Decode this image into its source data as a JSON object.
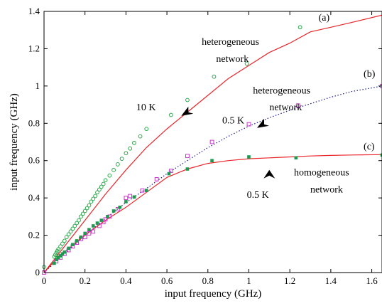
{
  "chart_data": {
    "type": "scatter",
    "xlabel": "input frequency (GHz)",
    "ylabel": "input frequency (GHz)",
    "xlim": [
      0,
      1.65
    ],
    "ylim": [
      0,
      1.4
    ],
    "xticks": [
      "0",
      "0.2",
      "0.4",
      "0.6",
      "0.8",
      "1",
      "1.2",
      "1.4",
      "1.6"
    ],
    "xtick_values": [
      0,
      0.2,
      0.4,
      0.6,
      0.8,
      1.0,
      1.2,
      1.4,
      1.6
    ],
    "yticks": [
      "0",
      "0.2",
      "0.4",
      "0.6",
      "0.8",
      "1",
      "1.2",
      "1.4"
    ],
    "ytick_values": [
      0,
      0.2,
      0.4,
      0.6,
      0.8,
      1.0,
      1.2,
      1.4
    ],
    "grid": false,
    "legend": "none",
    "colors": {
      "green_circle": "#2aa84a",
      "magenta_square": "#cc33cc",
      "green_square": "#1e9a50",
      "red_line": "#e8262b",
      "navy_dotted": "#1b1b8a"
    },
    "series": [
      {
        "marker": "open-circle",
        "color": "#2aa84a",
        "points": [
          [
            0.0,
            0.03
          ],
          [
            0.05,
            0.085
          ],
          [
            0.055,
            0.095
          ],
          [
            0.06,
            0.105
          ],
          [
            0.065,
            0.115
          ],
          [
            0.07,
            0.125
          ],
          [
            0.08,
            0.14
          ],
          [
            0.09,
            0.155
          ],
          [
            0.1,
            0.17
          ],
          [
            0.11,
            0.19
          ],
          [
            0.12,
            0.205
          ],
          [
            0.13,
            0.22
          ],
          [
            0.14,
            0.235
          ],
          [
            0.15,
            0.25
          ],
          [
            0.16,
            0.265
          ],
          [
            0.17,
            0.28
          ],
          [
            0.18,
            0.3
          ],
          [
            0.19,
            0.315
          ],
          [
            0.2,
            0.33
          ],
          [
            0.21,
            0.345
          ],
          [
            0.22,
            0.36
          ],
          [
            0.23,
            0.38
          ],
          [
            0.24,
            0.395
          ],
          [
            0.25,
            0.41
          ],
          [
            0.26,
            0.43
          ],
          [
            0.27,
            0.445
          ],
          [
            0.28,
            0.46
          ],
          [
            0.29,
            0.475
          ],
          [
            0.3,
            0.495
          ],
          [
            0.32,
            0.52
          ],
          [
            0.34,
            0.55
          ],
          [
            0.36,
            0.58
          ],
          [
            0.38,
            0.61
          ],
          [
            0.4,
            0.64
          ],
          [
            0.42,
            0.665
          ],
          [
            0.44,
            0.695
          ],
          [
            0.47,
            0.73
          ],
          [
            0.5,
            0.77
          ],
          [
            0.62,
            0.845
          ],
          [
            0.7,
            0.925
          ],
          [
            0.83,
            1.05
          ],
          [
            0.99,
            1.12
          ],
          [
            1.25,
            1.315
          ]
        ]
      },
      {
        "marker": "open-square",
        "color": "#cc33cc",
        "points": [
          [
            0.0,
            0.0
          ],
          [
            0.06,
            0.06
          ],
          [
            0.08,
            0.08
          ],
          [
            0.1,
            0.1
          ],
          [
            0.12,
            0.12
          ],
          [
            0.14,
            0.14
          ],
          [
            0.16,
            0.16
          ],
          [
            0.18,
            0.18
          ],
          [
            0.2,
            0.19
          ],
          [
            0.22,
            0.21
          ],
          [
            0.24,
            0.22
          ],
          [
            0.27,
            0.25
          ],
          [
            0.29,
            0.27
          ],
          [
            0.3,
            0.285
          ],
          [
            0.32,
            0.3
          ],
          [
            0.36,
            0.34
          ],
          [
            0.4,
            0.4
          ],
          [
            0.42,
            0.41
          ],
          [
            0.48,
            0.44
          ],
          [
            0.55,
            0.5
          ],
          [
            0.62,
            0.545
          ],
          [
            0.7,
            0.625
          ],
          [
            0.82,
            0.7
          ],
          [
            1.0,
            0.795
          ],
          [
            1.24,
            0.895
          ],
          [
            1.65,
            1.0
          ]
        ]
      },
      {
        "marker": "filled-square",
        "color": "#1e9a50",
        "points": [
          [
            0.05,
            0.05
          ],
          [
            0.06,
            0.07
          ],
          [
            0.07,
            0.08
          ],
          [
            0.08,
            0.09
          ],
          [
            0.09,
            0.1
          ],
          [
            0.1,
            0.11
          ],
          [
            0.12,
            0.13
          ],
          [
            0.14,
            0.15
          ],
          [
            0.16,
            0.17
          ],
          [
            0.18,
            0.19
          ],
          [
            0.2,
            0.21
          ],
          [
            0.22,
            0.23
          ],
          [
            0.24,
            0.25
          ],
          [
            0.26,
            0.265
          ],
          [
            0.28,
            0.28
          ],
          [
            0.31,
            0.3
          ],
          [
            0.34,
            0.33
          ],
          [
            0.37,
            0.35
          ],
          [
            0.4,
            0.38
          ],
          [
            0.44,
            0.405
          ],
          [
            0.5,
            0.44
          ],
          [
            0.61,
            0.53
          ],
          [
            0.7,
            0.555
          ],
          [
            0.82,
            0.6
          ],
          [
            1.0,
            0.62
          ],
          [
            1.23,
            0.615
          ],
          [
            1.65,
            0.63
          ]
        ]
      }
    ],
    "curves": [
      {
        "style": "solid",
        "color": "#e8262b",
        "points": [
          [
            0.0,
            0.0
          ],
          [
            0.05,
            0.07
          ],
          [
            0.1,
            0.14
          ],
          [
            0.2,
            0.28
          ],
          [
            0.3,
            0.42
          ],
          [
            0.4,
            0.55
          ],
          [
            0.5,
            0.67
          ],
          [
            0.6,
            0.77
          ],
          [
            0.7,
            0.86
          ],
          [
            0.8,
            0.95
          ],
          [
            0.9,
            1.04
          ],
          [
            1.0,
            1.11
          ],
          [
            1.1,
            1.18
          ],
          [
            1.2,
            1.23
          ],
          [
            1.3,
            1.29
          ],
          [
            1.4,
            1.315
          ],
          [
            1.5,
            1.34
          ],
          [
            1.65,
            1.38
          ]
        ]
      },
      {
        "style": "dotted",
        "color": "#1b1b8a",
        "points": [
          [
            0.0,
            0.0
          ],
          [
            0.1,
            0.1
          ],
          [
            0.2,
            0.2
          ],
          [
            0.3,
            0.29
          ],
          [
            0.4,
            0.375
          ],
          [
            0.5,
            0.45
          ],
          [
            0.6,
            0.53
          ],
          [
            0.7,
            0.6
          ],
          [
            0.8,
            0.67
          ],
          [
            0.9,
            0.73
          ],
          [
            1.0,
            0.785
          ],
          [
            1.1,
            0.83
          ],
          [
            1.2,
            0.87
          ],
          [
            1.3,
            0.905
          ],
          [
            1.4,
            0.94
          ],
          [
            1.5,
            0.97
          ],
          [
            1.65,
            1.0
          ]
        ]
      },
      {
        "style": "solid",
        "color": "#e8262b",
        "points": [
          [
            0.0,
            0.0
          ],
          [
            0.05,
            0.06
          ],
          [
            0.1,
            0.11
          ],
          [
            0.2,
            0.2
          ],
          [
            0.3,
            0.28
          ],
          [
            0.4,
            0.35
          ],
          [
            0.5,
            0.43
          ],
          [
            0.6,
            0.51
          ],
          [
            0.7,
            0.555
          ],
          [
            0.8,
            0.585
          ],
          [
            0.9,
            0.6
          ],
          [
            1.0,
            0.61
          ],
          [
            1.1,
            0.615
          ],
          [
            1.2,
            0.62
          ],
          [
            1.3,
            0.625
          ],
          [
            1.4,
            0.628
          ],
          [
            1.5,
            0.63
          ],
          [
            1.65,
            0.632
          ]
        ]
      }
    ],
    "annotations": [
      {
        "text": "(a)",
        "x": 1.34,
        "y": 1.35
      },
      {
        "text": "heterogeneous",
        "x": 0.77,
        "y": 1.22
      },
      {
        "text": "network",
        "x": 0.84,
        "y": 1.13
      },
      {
        "text": "10 K",
        "x": 0.45,
        "y": 0.87
      },
      {
        "text": "heterogeneous",
        "x": 1.02,
        "y": 0.96
      },
      {
        "text": "network",
        "x": 1.1,
        "y": 0.87
      },
      {
        "text": "0.5 K",
        "x": 0.87,
        "y": 0.8
      },
      {
        "text": "(b)",
        "x": 1.56,
        "y": 1.05
      },
      {
        "text": "(c)",
        "x": 1.56,
        "y": 0.66
      },
      {
        "text": "homogeneous",
        "x": 1.22,
        "y": 0.52
      },
      {
        "text": "0.5 K",
        "x": 0.99,
        "y": 0.4
      },
      {
        "text": "network",
        "x": 1.3,
        "y": 0.43
      }
    ],
    "arrows": [
      {
        "tip": [
          0.67,
          0.84
        ],
        "dir": "left-down"
      },
      {
        "tip": [
          1.04,
          0.775
        ],
        "dir": "left-down"
      },
      {
        "tip": [
          1.1,
          0.55
        ],
        "dir": "up"
      }
    ]
  }
}
